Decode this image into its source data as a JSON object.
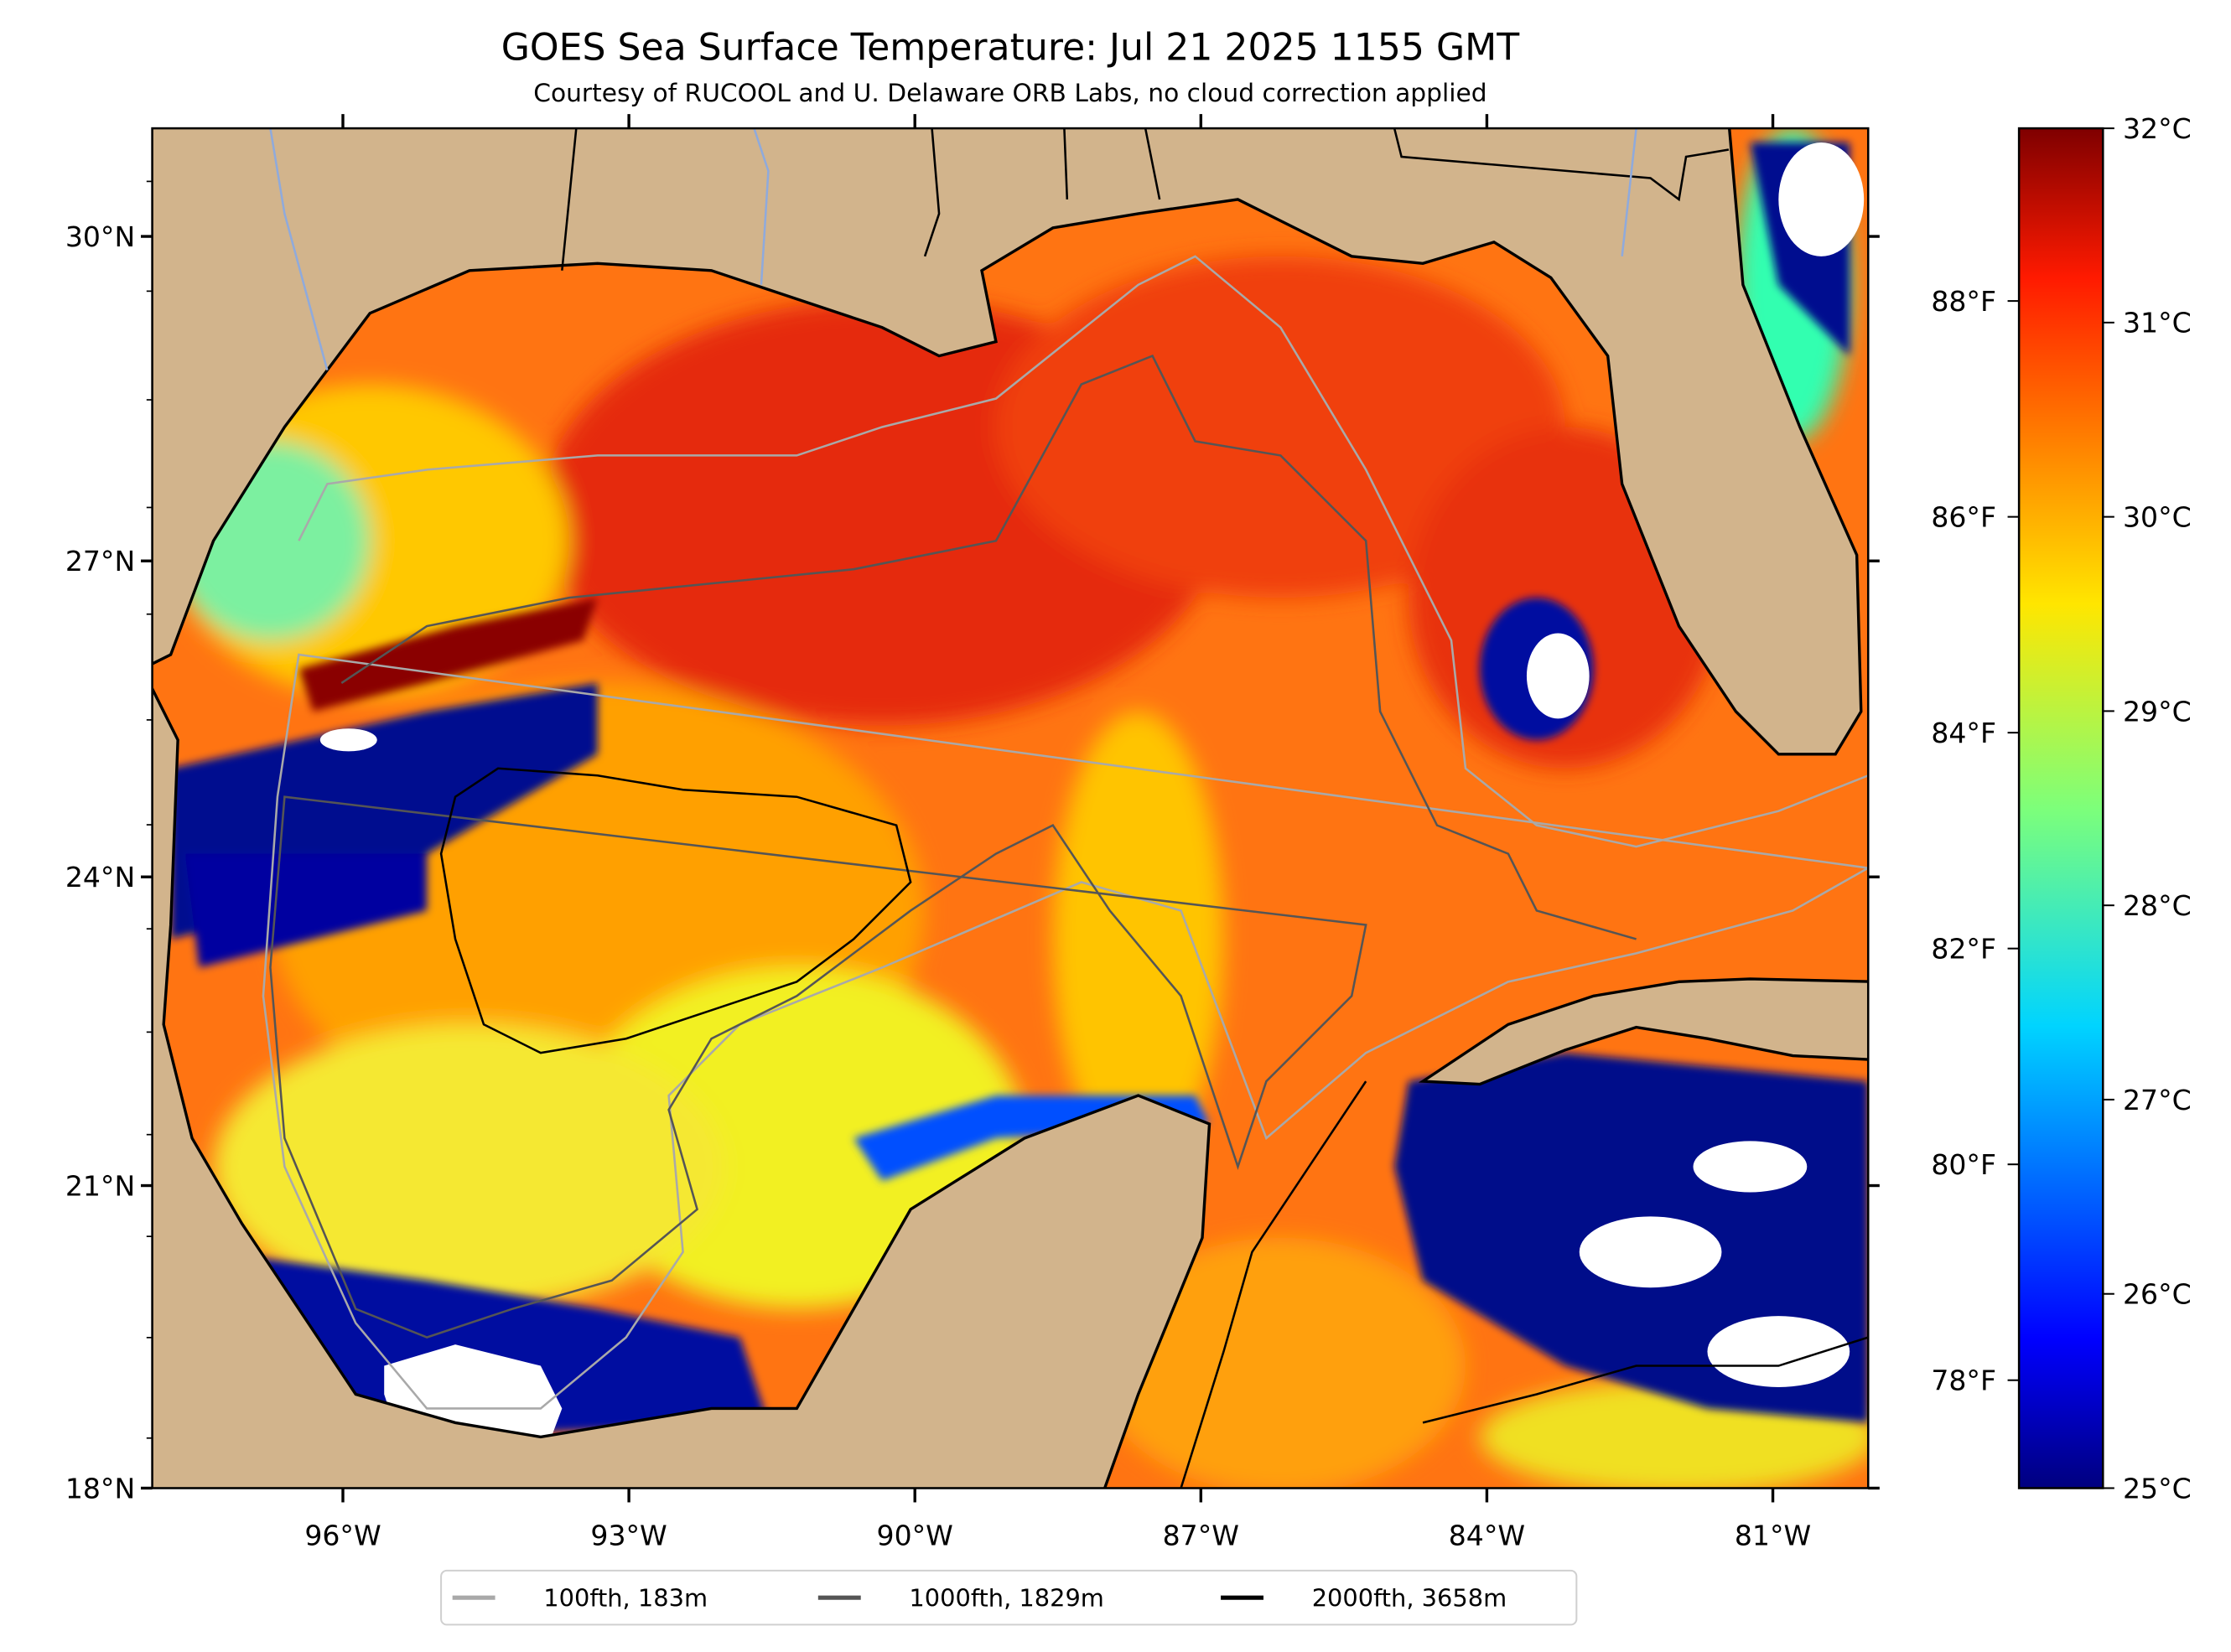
{
  "title": "GOES Sea Surface Temperature: Jul 21 2025 1155 GMT",
  "subtitle": "Courtesy of RUCOOL and U. Delaware ORB Labs, no cloud correction applied",
  "map": {
    "lon_range": [
      -98.0,
      -80.0
    ],
    "lat_range": [
      18.0,
      30.98
    ],
    "lat_ticks": [
      {
        "value": 18,
        "label": "18°N"
      },
      {
        "value": 21,
        "label": "21°N"
      },
      {
        "value": 24,
        "label": "24°N"
      },
      {
        "value": 27,
        "label": "27°N"
      },
      {
        "value": 30,
        "label": "30°N"
      }
    ],
    "lon_ticks": [
      {
        "value": -96,
        "label": "96°W"
      },
      {
        "value": -93,
        "label": "93°W"
      },
      {
        "value": -90,
        "label": "90°W"
      },
      {
        "value": -87,
        "label": "87°W"
      },
      {
        "value": -84,
        "label": "84°W"
      },
      {
        "value": -81,
        "label": "81°W"
      }
    ],
    "land_color": "#d2b48c",
    "cloud_color": "#ffffff"
  },
  "colorbar": {
    "colormap": "jet",
    "range_c": [
      25,
      32
    ],
    "celsius_ticks": [
      {
        "value": 25,
        "label": "25°C"
      },
      {
        "value": 26,
        "label": "26°C"
      },
      {
        "value": 27,
        "label": "27°C"
      },
      {
        "value": 28,
        "label": "28°C"
      },
      {
        "value": 29,
        "label": "29°C"
      },
      {
        "value": 30,
        "label": "30°C"
      },
      {
        "value": 31,
        "label": "31°C"
      },
      {
        "value": 32,
        "label": "32°C"
      }
    ],
    "fahrenheit_ticks": [
      {
        "value": 78,
        "label": "78°F"
      },
      {
        "value": 80,
        "label": "80°F"
      },
      {
        "value": 82,
        "label": "82°F"
      },
      {
        "value": 84,
        "label": "84°F"
      },
      {
        "value": 86,
        "label": "86°F"
      },
      {
        "value": 88,
        "label": "88°F"
      }
    ]
  },
  "legend": {
    "items": [
      {
        "label": "100fth, 183m",
        "color": "#a9a9a9"
      },
      {
        "label": "1000fth, 1829m",
        "color": "#555555"
      },
      {
        "label": "2000fth, 3658m",
        "color": "#000000"
      }
    ]
  }
}
